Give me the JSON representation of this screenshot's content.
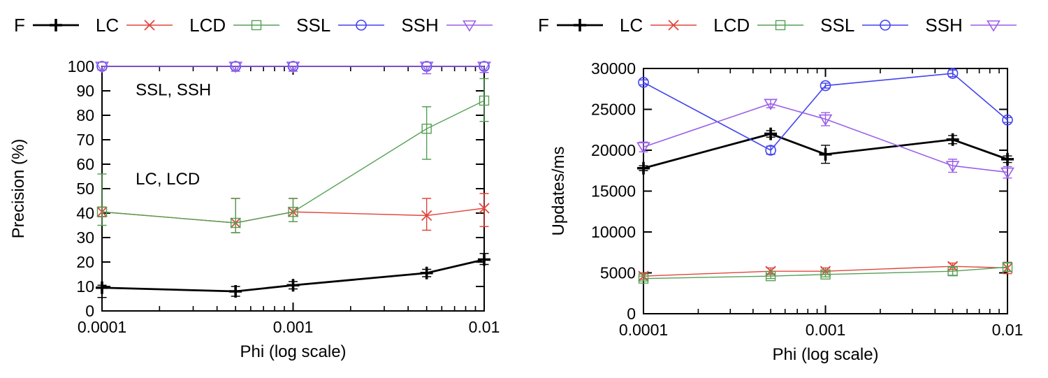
{
  "figure": {
    "background": "#ffffff",
    "axis_color": "#000000"
  },
  "series_styles": [
    {
      "name": "F",
      "color": "#000000",
      "marker": "plus",
      "line_width": 2.8
    },
    {
      "name": "LC",
      "color": "#e0463c",
      "marker": "cross",
      "line_width": 1.4
    },
    {
      "name": "LCD",
      "color": "#55a055",
      "marker": "square",
      "line_width": 1.4
    },
    {
      "name": "SSL",
      "color": "#4343f0",
      "marker": "circle",
      "line_width": 1.6
    },
    {
      "name": "SSH",
      "color": "#9a5fe8",
      "marker": "triangle-down",
      "line_width": 1.6
    }
  ],
  "chart_data": [
    {
      "type": "line",
      "title": "",
      "xlabel": "Phi (log scale)",
      "ylabel": "Precision (%)",
      "xscale": "log",
      "xlim": [
        0.0001,
        0.01
      ],
      "ylim": [
        0,
        100
      ],
      "grid": false,
      "legend_position": "above",
      "x": [
        0.0001,
        0.0005,
        0.001,
        0.005,
        0.01
      ],
      "xtick_values": [
        0.0001,
        0.001,
        0.01
      ],
      "xtick_labels": [
        "0.0001",
        "0.001",
        "0.01"
      ],
      "ytick_values": [
        0,
        10,
        20,
        30,
        40,
        50,
        60,
        70,
        80,
        90,
        100
      ],
      "ytick_labels": [
        "0",
        "10",
        "20",
        "30",
        "40",
        "50",
        "60",
        "70",
        "80",
        "90",
        "100"
      ],
      "annotations": [
        {
          "text": "SSL, SSH",
          "x": 0.00015,
          "y": 90.5
        },
        {
          "text": "LC, LCD",
          "x": 0.00015,
          "y": 54
        }
      ],
      "series": [
        {
          "name": "F",
          "values": [
            9.5,
            8,
            10.5,
            15.5,
            21
          ],
          "err_lo": [
            4,
            2,
            1.5,
            1.5,
            2
          ],
          "err_hi": [
            1,
            2,
            1.5,
            1.5,
            2.5
          ]
        },
        {
          "name": "LC",
          "values": [
            40.5,
            36,
            40.5,
            39,
            42
          ],
          "err_lo": [
            2,
            4,
            4,
            6,
            7.5
          ],
          "err_hi": [
            2,
            10,
            5.5,
            7,
            6
          ]
        },
        {
          "name": "LCD",
          "values": [
            40.5,
            36,
            40.5,
            74.5,
            86
          ],
          "err_lo": [
            5.5,
            4,
            4,
            12.5,
            8.5
          ],
          "err_hi": [
            15.5,
            10,
            5.5,
            9,
            9
          ]
        },
        {
          "name": "SSL",
          "values": [
            100,
            100,
            100,
            100,
            100
          ],
          "err_lo": [
            0,
            0,
            0,
            0,
            0
          ],
          "err_hi": [
            0,
            0,
            0,
            0,
            0
          ]
        },
        {
          "name": "SSH",
          "values": [
            100,
            100,
            100,
            100,
            100
          ],
          "err_lo": [
            1.5,
            2,
            2,
            3,
            2.5
          ],
          "err_hi": [
            0,
            0,
            0,
            0,
            0
          ]
        }
      ]
    },
    {
      "type": "line",
      "title": "",
      "xlabel": "Phi (log scale)",
      "ylabel": "Updates/ms",
      "xscale": "log",
      "xlim": [
        0.0001,
        0.01
      ],
      "ylim": [
        0,
        30000
      ],
      "grid": false,
      "legend_position": "above",
      "x": [
        0.0001,
        0.0005,
        0.001,
        0.005,
        0.01
      ],
      "xtick_values": [
        0.0001,
        0.001,
        0.01
      ],
      "xtick_labels": [
        "0.0001",
        "0.001",
        "0.01"
      ],
      "ytick_values": [
        0,
        5000,
        10000,
        15000,
        20000,
        25000,
        30000
      ],
      "ytick_labels": [
        "0",
        "5000",
        "10000",
        "15000",
        "20000",
        "25000",
        "30000"
      ],
      "annotations": [],
      "series": [
        {
          "name": "F",
          "values": [
            17800,
            22000,
            19500,
            21300,
            18900
          ],
          "err_lo": [
            300,
            400,
            1100,
            500,
            400
          ],
          "err_hi": [
            300,
            400,
            1100,
            500,
            400
          ]
        },
        {
          "name": "LC",
          "values": [
            4600,
            5200,
            5200,
            5800,
            5600
          ],
          "err_lo": [
            400,
            400,
            400,
            400,
            700
          ],
          "err_hi": [
            400,
            400,
            400,
            400,
            700
          ]
        },
        {
          "name": "LCD",
          "values": [
            4300,
            4600,
            4800,
            5200,
            5700
          ],
          "err_lo": [
            300,
            300,
            300,
            500,
            500
          ],
          "err_hi": [
            300,
            300,
            300,
            500,
            500
          ]
        },
        {
          "name": "SSL",
          "values": [
            28300,
            20000,
            27900,
            29400,
            23700
          ],
          "err_lo": [
            300,
            500,
            300,
            400,
            300
          ],
          "err_hi": [
            300,
            500,
            300,
            400,
            300
          ]
        },
        {
          "name": "SSH",
          "values": [
            20400,
            25700,
            23800,
            18100,
            17300
          ],
          "err_lo": [
            600,
            500,
            800,
            800,
            700
          ],
          "err_hi": [
            600,
            500,
            800,
            800,
            700
          ]
        }
      ]
    }
  ]
}
